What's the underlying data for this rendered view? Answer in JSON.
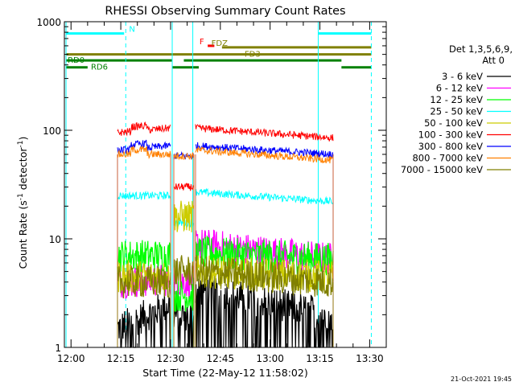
{
  "chart_data": {
    "type": "line",
    "title": "RHESSI Observing Summary Count Rates",
    "xlabel": "Start Time (22-May-12 11:58:02)",
    "ylabel_main": "Count Rate (s",
    "ylabel_sup1": "-1",
    "ylabel_mid": " detector",
    "ylabel_sup2": "-1",
    "ylabel_end": ")",
    "yscale": "log",
    "xlim_minutes": [
      718,
      815
    ],
    "ylim": [
      1,
      1000
    ],
    "x_ticks": [
      {
        "label": "12:00",
        "minutes": 720
      },
      {
        "label": "12:15",
        "minutes": 735
      },
      {
        "label": "12:30",
        "minutes": 750
      },
      {
        "label": "12:45",
        "minutes": 765
      },
      {
        "label": "13:00",
        "minutes": 780
      },
      {
        "label": "13:15",
        "minutes": 795
      },
      {
        "label": "13:30",
        "minutes": 810
      }
    ],
    "y_ticks": [
      {
        "label": "1",
        "value": 1
      },
      {
        "label": "10",
        "value": 10
      },
      {
        "label": "100",
        "value": 100
      },
      {
        "label": "1000",
        "value": 1000
      }
    ],
    "legend": {
      "title_line1": "Det 1,3,5,6,9,",
      "title_line2": "Att 0",
      "position": "right",
      "entries": [
        {
          "label": "3 - 6 keV",
          "color": "#000000"
        },
        {
          "label": "6 - 12 keV",
          "color": "#ff00ff"
        },
        {
          "label": "12 - 25 keV",
          "color": "#00ff00"
        },
        {
          "label": "25 - 50 keV",
          "color": "#00ffff"
        },
        {
          "label": "50 - 100 keV",
          "color": "#cccc00"
        },
        {
          "label": "100 - 300 keV",
          "color": "#ff0000"
        },
        {
          "label": "300 - 800 keV",
          "color": "#0000ff"
        },
        {
          "label": "800 - 7000 keV",
          "color": "#ff8000"
        },
        {
          "label": "7000 - 15000 keV",
          "color": "#808000"
        }
      ]
    },
    "segments_minutes": [
      [
        734,
        750
      ],
      [
        751,
        757
      ],
      [
        757.5,
        799
      ]
    ],
    "series": [
      {
        "name": "3 - 6 keV",
        "color": "#000000",
        "values": [
          1.5,
          2.5,
          2.0,
          3.5,
          2.0
        ]
      },
      {
        "name": "6 - 12 keV",
        "color": "#ff00ff",
        "values": [
          4.0,
          4.2,
          4.0,
          9.0,
          6.5
        ]
      },
      {
        "name": "12 - 25 keV",
        "color": "#00ff00",
        "values": [
          7.0,
          7.0,
          3.0,
          7.5,
          6.5
        ]
      },
      {
        "name": "25 - 50 keV",
        "color": "#00ffff",
        "values": [
          25,
          25,
          14,
          27,
          22
        ]
      },
      {
        "name": "50 - 100 keV",
        "color": "#cccc00",
        "values": [
          4.5,
          4.5,
          16,
          5.0,
          4.5
        ]
      },
      {
        "name": "100 - 300 keV",
        "color": "#ff0000",
        "values": [
          95,
          105,
          30,
          105,
          85
        ]
      },
      {
        "name": "300 - 800 keV",
        "color": "#0000ff",
        "values": [
          65,
          72,
          58,
          72,
          60
        ]
      },
      {
        "name": "800 - 7000 keV",
        "color": "#ff8000",
        "values": [
          60,
          60,
          58,
          66,
          53
        ]
      },
      {
        "name": "7000 - 15000 keV",
        "color": "#808000",
        "values": [
          4.0,
          4.0,
          5.0,
          5.0,
          4.0
        ]
      }
    ],
    "cyan_vlines_minutes": [
      718.5,
      736.5,
      750.5,
      756.7,
      794.5,
      810.5
    ],
    "flag_bars": [
      {
        "label": "N",
        "color": "#00ffff",
        "y_value": 780,
        "ranges": [
          [
            718.5,
            736.0
          ],
          [
            794.5,
            810.5
          ]
        ],
        "label_at": 737.5
      },
      {
        "label": "F",
        "color": "#ff0000",
        "y_value": 600,
        "ranges": [
          [
            761.2,
            763.2
          ]
        ],
        "label_at": 758.7
      },
      {
        "label": "FDZ",
        "color": "#808000",
        "y_value": 580,
        "ranges": [
          [
            765.5,
            810.5
          ]
        ],
        "label_at": 762.3
      },
      {
        "label": "FD3",
        "color": "#808000",
        "y_value": 500,
        "ranges": [
          [
            718.5,
            810.5
          ]
        ],
        "label_at": 772.3
      },
      {
        "label": "RD0",
        "color": "#008000",
        "y_value": 440,
        "ranges": [
          [
            718.5,
            750.5
          ],
          [
            754.0,
            801.5
          ]
        ],
        "label_at": 719.0
      },
      {
        "label": "RD6",
        "color": "#008000",
        "y_value": 380,
        "ranges": [
          [
            718.5,
            725.0
          ],
          [
            750.5,
            758.5
          ],
          [
            801.5,
            810.5
          ]
        ],
        "label_at": 726.0
      }
    ]
  },
  "footer": {
    "timestamp": "21-Oct-2021 19:45"
  }
}
